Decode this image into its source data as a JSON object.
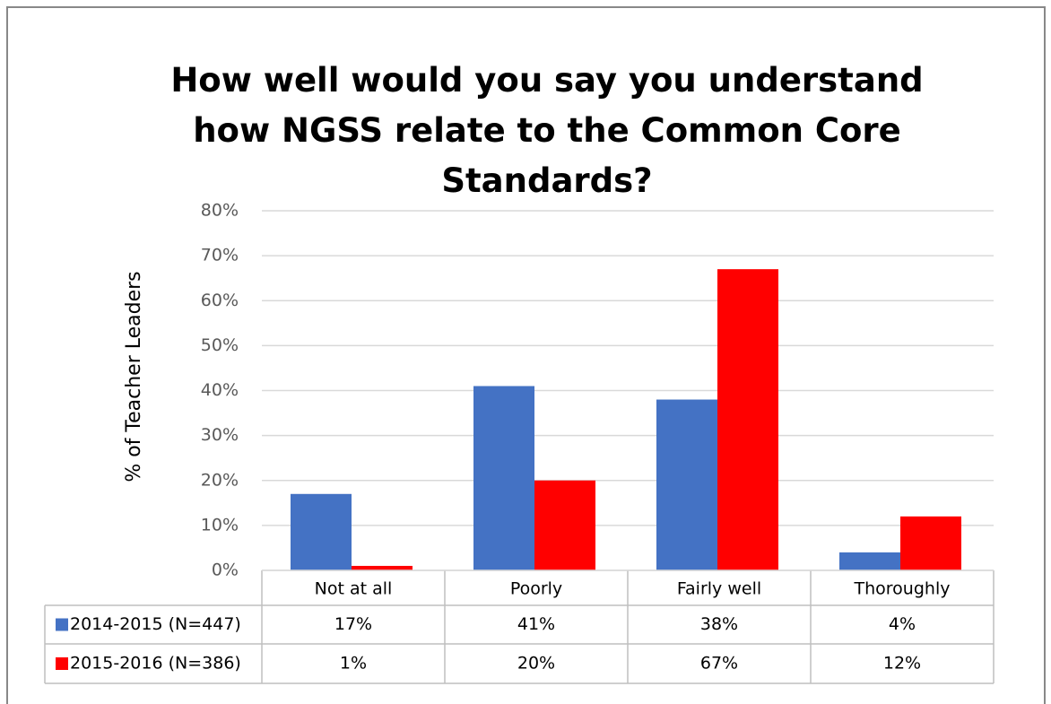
{
  "chart_data": {
    "type": "bar",
    "title": "How well would you say you understand how NGSS relate to the Common Core Standards?",
    "ylabel": "% of Teacher Leaders",
    "categories": [
      "Not at all",
      "Poorly",
      "Fairly well",
      "Thoroughly"
    ],
    "series": [
      {
        "name": "2014-2015 (N=447)",
        "color": "#4472c4",
        "values": [
          17,
          41,
          38,
          4
        ],
        "value_labels": [
          "17%",
          "41%",
          "38%",
          "4%"
        ]
      },
      {
        "name": "2015-2016 (N=386)",
        "color": "#ff0000",
        "values": [
          1,
          20,
          67,
          12
        ],
        "value_labels": [
          "1%",
          "20%",
          "67%",
          "12%"
        ]
      }
    ],
    "ylim": [
      0,
      80
    ],
    "yticks": [
      {
        "value": 0,
        "label": "0%"
      },
      {
        "value": 10,
        "label": "10%"
      },
      {
        "value": 20,
        "label": "20%"
      },
      {
        "value": 30,
        "label": "30%"
      },
      {
        "value": 40,
        "label": "40%"
      },
      {
        "value": 50,
        "label": "50%"
      },
      {
        "value": 60,
        "label": "60%"
      },
      {
        "value": 70,
        "label": "70%"
      },
      {
        "value": 80,
        "label": "80%"
      }
    ],
    "grid": true
  }
}
